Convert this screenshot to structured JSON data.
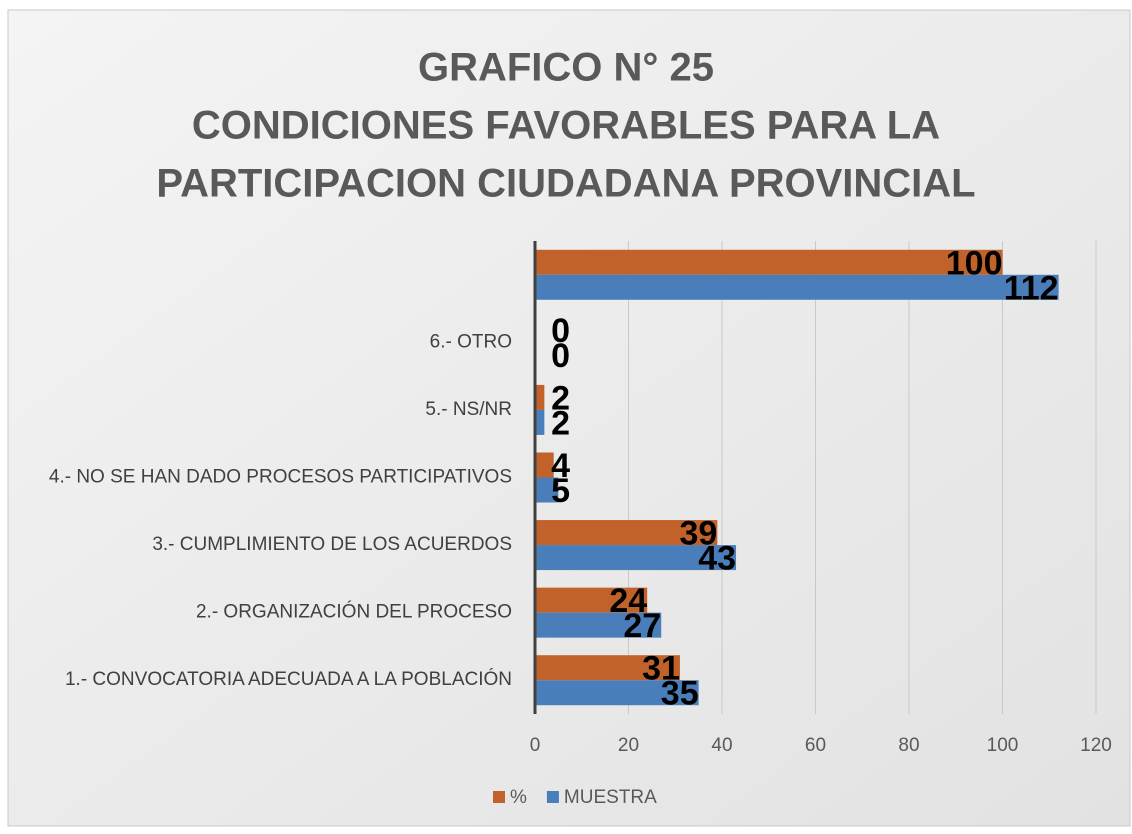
{
  "chart_data": {
    "type": "hbar",
    "title": [
      "GRAFICO N° 25",
      "CONDICIONES FAVORABLES PARA LA",
      "PARTICIPACION CIUDADANA PROVINCIAL"
    ],
    "categories": [
      "1.- CONVOCATORIA ADECUADA A LA POBLACIÓN",
      "2.- ORGANIZACIÓN DEL PROCESO",
      "3.- CUMPLIMIENTO DE LOS ACUERDOS",
      "4.- NO SE HAN DADO PROCESOS PARTICIPATIVOS",
      "5.- NS/NR",
      "6.- OTRO",
      null
    ],
    "series": [
      {
        "name": "%",
        "color": "#c0622a",
        "values": [
          31,
          24,
          39,
          4,
          2,
          0,
          100
        ]
      },
      {
        "name": "MUESTRA",
        "color": "#4a7ebb",
        "values": [
          35,
          27,
          43,
          5,
          2,
          0,
          112
        ]
      }
    ],
    "xlim": [
      0,
      120
    ],
    "xticks": [
      0,
      20,
      40,
      60,
      80,
      100,
      120
    ],
    "grid": true,
    "legend": "bottom"
  }
}
